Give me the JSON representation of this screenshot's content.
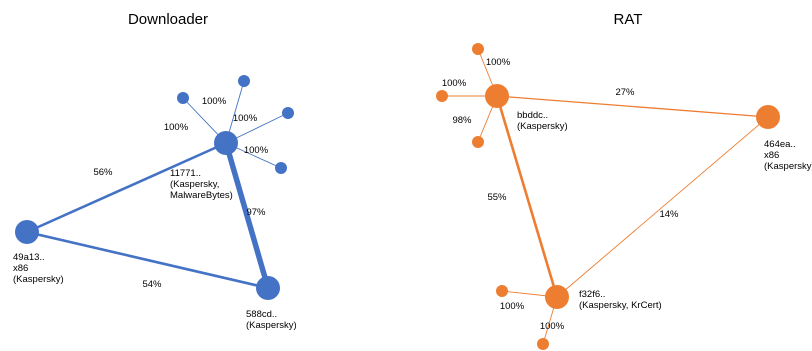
{
  "colors": {
    "downloader": "#4472C4",
    "rat": "#ED7D31"
  },
  "graphs": [
    {
      "title": "Downloader",
      "color": "downloader",
      "nodes": [
        {
          "id": "d_center",
          "lines": [
            "11771..",
            "(Kaspersky,",
            "MalwareBytes)"
          ]
        },
        {
          "id": "d_left",
          "lines": [
            "49a13..",
            "x86",
            "(Kaspersky)"
          ]
        },
        {
          "id": "d_bottom",
          "lines": [
            "588cd..",
            "(Kaspersky)"
          ]
        },
        {
          "id": "d_s1",
          "lines": []
        },
        {
          "id": "d_s2",
          "lines": []
        },
        {
          "id": "d_s3",
          "lines": []
        },
        {
          "id": "d_s4",
          "lines": []
        }
      ],
      "edges": [
        {
          "from": "d_center",
          "to": "d_left",
          "label": "56%",
          "weight": 56
        },
        {
          "from": "d_center",
          "to": "d_bottom",
          "label": "97%",
          "weight": 97
        },
        {
          "from": "d_left",
          "to": "d_bottom",
          "label": "54%",
          "weight": 54
        },
        {
          "from": "d_center",
          "to": "d_s1",
          "label": "100%",
          "weight": 100
        },
        {
          "from": "d_center",
          "to": "d_s2",
          "label": "100%",
          "weight": 100
        },
        {
          "from": "d_center",
          "to": "d_s3",
          "label": "100%",
          "weight": 100
        },
        {
          "from": "d_center",
          "to": "d_s4",
          "label": "100%",
          "weight": 100
        }
      ]
    },
    {
      "title": "RAT",
      "color": "rat",
      "nodes": [
        {
          "id": "r_top",
          "lines": [
            "bbddc..",
            "(Kaspersky)"
          ]
        },
        {
          "id": "r_right",
          "lines": [
            "464ea..",
            "x86",
            "(Kaspersky)"
          ]
        },
        {
          "id": "r_bottom",
          "lines": [
            "f32f6..",
            "(Kaspersky, KrCert)"
          ]
        },
        {
          "id": "r_s1",
          "lines": []
        },
        {
          "id": "r_s2",
          "lines": []
        },
        {
          "id": "r_s3",
          "lines": []
        },
        {
          "id": "r_s4",
          "lines": []
        },
        {
          "id": "r_s5",
          "lines": []
        }
      ],
      "edges": [
        {
          "from": "r_top",
          "to": "r_right",
          "label": "27%",
          "weight": 27
        },
        {
          "from": "r_top",
          "to": "r_bottom",
          "label": "55%",
          "weight": 55
        },
        {
          "from": "r_right",
          "to": "r_bottom",
          "label": "14%",
          "weight": 14
        },
        {
          "from": "r_top",
          "to": "r_s1",
          "label": "100%",
          "weight": 100
        },
        {
          "from": "r_top",
          "to": "r_s2",
          "label": "100%",
          "weight": 100
        },
        {
          "from": "r_top",
          "to": "r_s3",
          "label": "98%",
          "weight": 98
        },
        {
          "from": "r_bottom",
          "to": "r_s4",
          "label": "100%",
          "weight": 100
        },
        {
          "from": "r_bottom",
          "to": "r_s5",
          "label": "100%",
          "weight": 100
        }
      ]
    }
  ]
}
